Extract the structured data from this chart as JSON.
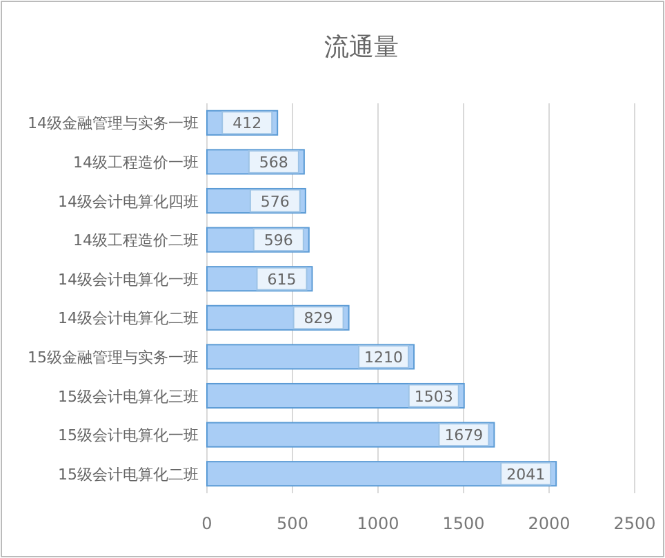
{
  "chart_data": {
    "type": "bar",
    "orientation": "horizontal",
    "title": "流通量",
    "categories": [
      "14级金融管理与实务一班",
      "14级工程造价一班",
      "14级会计电算化四班",
      "14级工程造价二班",
      "14级会计电算化一班",
      "14级会计电算化二班",
      "15级金融管理与实务一班",
      "15级会计电算化三班",
      "15级会计电算化一班",
      "15级会计电算化二班"
    ],
    "values": [
      412,
      568,
      576,
      596,
      615,
      829,
      1210,
      1503,
      1679,
      2041
    ],
    "color": "#a9cdf5",
    "xlim": [
      0,
      2500
    ],
    "xticks": [
      0,
      500,
      1000,
      1500,
      2000,
      2500
    ],
    "grid": "x",
    "data_labels": true
  }
}
